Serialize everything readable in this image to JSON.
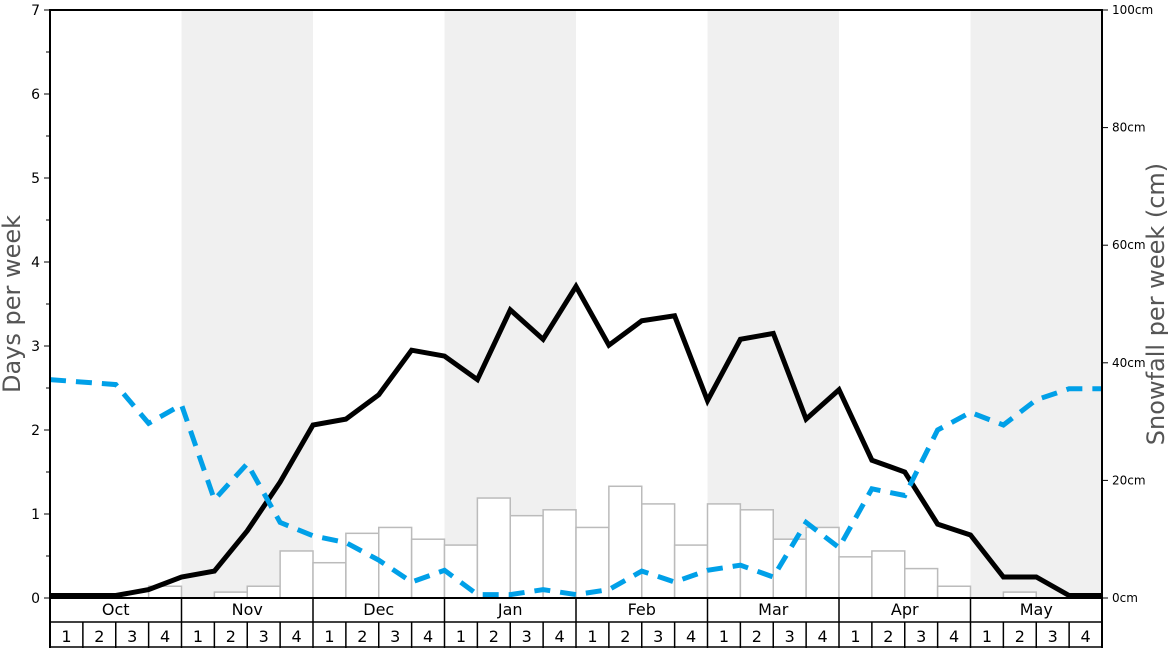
{
  "chart_data": {
    "type": "bar+line",
    "ylabel": "Days per week",
    "y2label": "Snowfall per week (cm)",
    "ylim": [
      0,
      7
    ],
    "y2lim": [
      0,
      100
    ],
    "yticks": [
      "0",
      "1",
      "2",
      "3",
      "4",
      "5",
      "6",
      "7"
    ],
    "y2ticks": [
      "0cm",
      "20cm",
      "40cm",
      "60cm",
      "80cm",
      "100cm"
    ],
    "months": [
      "Oct",
      "Nov",
      "Dec",
      "Jan",
      "Feb",
      "Mar",
      "Apr",
      "May"
    ],
    "weeks": [
      "1",
      "2",
      "3",
      "4"
    ],
    "shaded_months": [
      "Nov",
      "Jan",
      "Mar",
      "May"
    ],
    "colors": {
      "shade": "#f0f0f0",
      "bar_edge": "#bbbbbb",
      "line_solid": "#000000",
      "line_dashed": "#00a0e8"
    },
    "bars_snowfall_cm": [
      0,
      0,
      0,
      2,
      0,
      1,
      2,
      8,
      6,
      11,
      12,
      10,
      9,
      17,
      14,
      15,
      12,
      19,
      16,
      9,
      16,
      15,
      10,
      12,
      7,
      8,
      5,
      2,
      0,
      1,
      0,
      0
    ],
    "series": [
      {
        "style": "solid-black",
        "axis": "left",
        "values": [
          0.03,
          0.03,
          0.03,
          0.1,
          0.25,
          0.32,
          0.8,
          1.38,
          2.06,
          2.13,
          2.42,
          2.95,
          2.88,
          2.6,
          3.43,
          3.08,
          3.71,
          3.01,
          3.3,
          3.36,
          2.35,
          3.08,
          3.15,
          2.13,
          2.48,
          1.64,
          1.5,
          0.88,
          0.75,
          0.25,
          0.25,
          0.03,
          0.03
        ]
      },
      {
        "style": "dashed-blue",
        "axis": "left",
        "values": [
          2.6,
          2.57,
          2.54,
          2.08,
          2.3,
          1.17,
          1.6,
          0.9,
          0.74,
          0.66,
          0.45,
          0.19,
          0.33,
          0.04,
          0.04,
          0.1,
          0.04,
          0.1,
          0.32,
          0.19,
          0.33,
          0.39,
          0.25,
          0.9,
          0.6,
          1.3,
          1.22,
          2.0,
          2.21,
          2.06,
          2.36,
          2.49,
          2.49
        ]
      }
    ]
  }
}
